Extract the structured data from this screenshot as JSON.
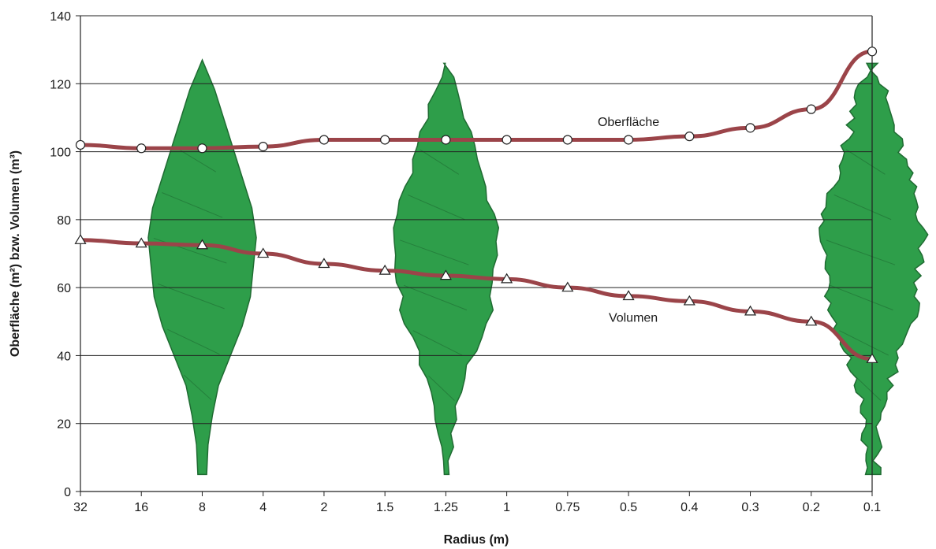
{
  "chart_data": {
    "type": "line",
    "categories": [
      "32",
      "16",
      "8",
      "4",
      "2",
      "1.5",
      "1.25",
      "1",
      "0.75",
      "0.5",
      "0.4",
      "0.3",
      "0.2",
      "0.1"
    ],
    "xlabel": "Radius (m)",
    "ylabel": "Oberfläche (m²) bzw. Volumen (m³)",
    "ylim": [
      0,
      140
    ],
    "yticks": [
      0,
      20,
      40,
      60,
      80,
      100,
      120,
      140
    ],
    "grid": true,
    "series": [
      {
        "name": "Oberfläche",
        "marker": "circle",
        "color": "#9b4449",
        "values": [
          102,
          101,
          101,
          101.5,
          103.5,
          103.5,
          103.5,
          103.5,
          103.5,
          103.5,
          104.5,
          107,
          112.5,
          129.5
        ]
      },
      {
        "name": "Volumen",
        "marker": "triangle",
        "color": "#9b4449",
        "values": [
          74,
          73,
          72.5,
          70,
          67,
          65,
          63.5,
          62.5,
          60,
          57.5,
          56,
          53,
          50,
          39
        ]
      }
    ],
    "tree_fill": "#2e9e4a",
    "tree_dark": "#1f6b32"
  }
}
